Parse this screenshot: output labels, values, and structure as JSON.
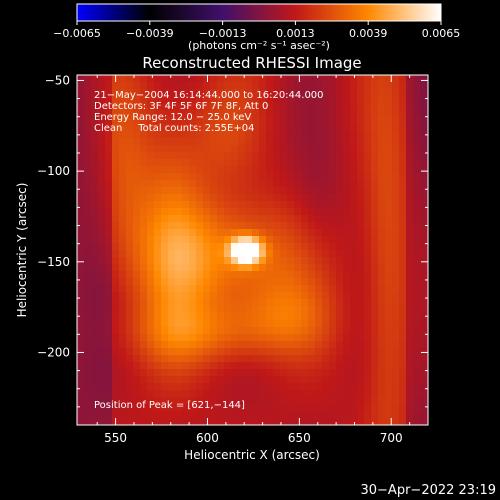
{
  "chart_data": {
    "type": "heatmap",
    "title": "Reconstructed RHESSI Image",
    "xlabel": "Heliocentric X (arcsec)",
    "ylabel": "Heliocentric Y (arcsec)",
    "xlim": [
      529,
      720
    ],
    "ylim": [
      -240,
      -47
    ],
    "x_ticks": [
      "550",
      "600",
      "650",
      "700"
    ],
    "x_tick_values": [
      550,
      600,
      650,
      700
    ],
    "y_ticks": [
      "−50",
      "−100",
      "−150",
      "−200"
    ],
    "y_tick_values": [
      -50,
      -100,
      -150,
      -200
    ],
    "colorbar": {
      "range": [
        -0.0065,
        0.0065
      ],
      "tick_labels": [
        "−0.0065",
        "−0.0039",
        "−0.0013",
        "0.0013",
        "0.0039",
        "0.0065"
      ],
      "tick_values": [
        -0.0065,
        -0.0039,
        -0.0013,
        0.0013,
        0.0039,
        0.0065
      ],
      "unit_label": "(photons cm⁻² s⁻¹ asec⁻²)",
      "colormap": [
        "#0000ff",
        "#000000",
        "#40106a",
        "#c01818",
        "#ff8800",
        "#ffffff"
      ]
    },
    "annotations": [
      "21−May−2004 16:14:44.000 to 16:20:44.000",
      "Detectors: 3F 4F 5F 6F 7F 8F, Att 0",
      "Energy Range: 12.0 − 25.0 keV",
      "Clean     Total counts: 2.55E+04"
    ],
    "peak_label": "Position of Peak = [621,−144]",
    "peak": {
      "x": 621,
      "y": -144,
      "value": 0.0065
    },
    "sources": [
      {
        "x": 621,
        "y": -144,
        "sx": 6,
        "sy": 5,
        "amp": 0.0062
      },
      {
        "x": 612,
        "y": -148,
        "sx": 30,
        "sy": 22,
        "amp": 0.0025
      },
      {
        "x": 580,
        "y": -130,
        "sx": 14,
        "sy": 50,
        "amp": 0.0018
      },
      {
        "x": 555,
        "y": -110,
        "sx": 10,
        "sy": 45,
        "amp": 0.0012
      },
      {
        "x": 600,
        "y": -190,
        "sx": 30,
        "sy": 12,
        "amp": 0.0016
      },
      {
        "x": 640,
        "y": -180,
        "sx": 20,
        "sy": 15,
        "amp": 0.0014
      },
      {
        "x": 698,
        "y": -160,
        "sx": 9,
        "sy": 75,
        "amp": 0.0016
      },
      {
        "x": 608,
        "y": -80,
        "sx": 14,
        "sy": 20,
        "amp": 0.0009
      },
      {
        "x": 660,
        "y": -120,
        "sx": 10,
        "sy": 30,
        "amp": -0.0006
      }
    ]
  },
  "timestamp": "30−Apr−2022 23:19"
}
